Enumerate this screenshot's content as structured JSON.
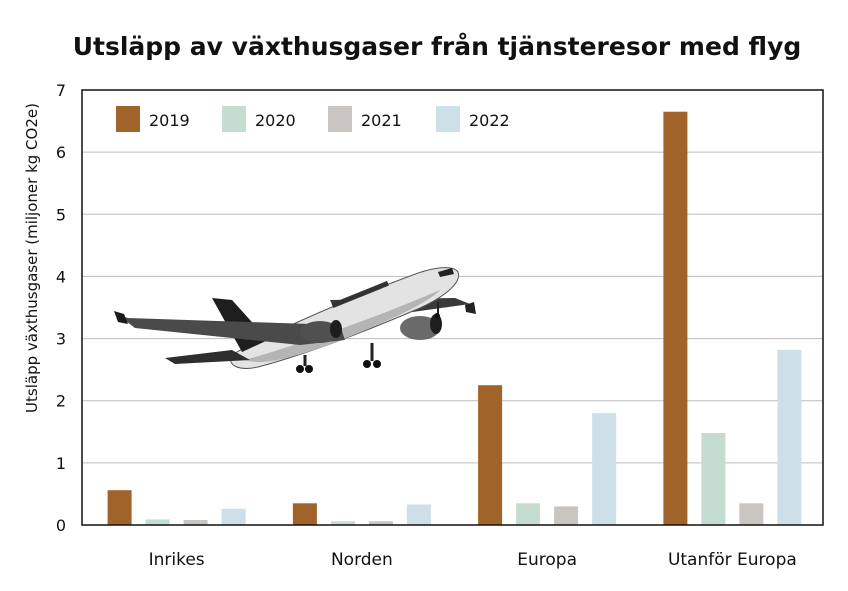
{
  "chart_data": {
    "type": "bar",
    "title": "Utsläpp av växthusgaser från tjänsteresor med flyg",
    "ylabel": "Utsläpp växthusgaser (miljoner kg CO2e)",
    "xlabel": "",
    "ylim": [
      0,
      7
    ],
    "yticks": [
      0,
      1,
      2,
      3,
      4,
      5,
      6,
      7
    ],
    "grid": true,
    "legend_position": "top-left",
    "categories": [
      "Inrikes",
      "Norden",
      "Europa",
      "Utanför Europa"
    ],
    "series": [
      {
        "name": "2019",
        "color": "#a0632a",
        "values": [
          0.56,
          0.35,
          2.25,
          6.65
        ]
      },
      {
        "name": "2020",
        "color": "#c5ddd0",
        "values": [
          0.09,
          0.06,
          0.35,
          1.48
        ]
      },
      {
        "name": "2021",
        "color": "#c9c5c0",
        "values": [
          0.08,
          0.06,
          0.3,
          0.35
        ]
      },
      {
        "name": "2022",
        "color": "#cde0e7",
        "values": [
          0.26,
          0.33,
          1.8,
          2.82
        ]
      }
    ],
    "illustration": "airplane-photo"
  }
}
